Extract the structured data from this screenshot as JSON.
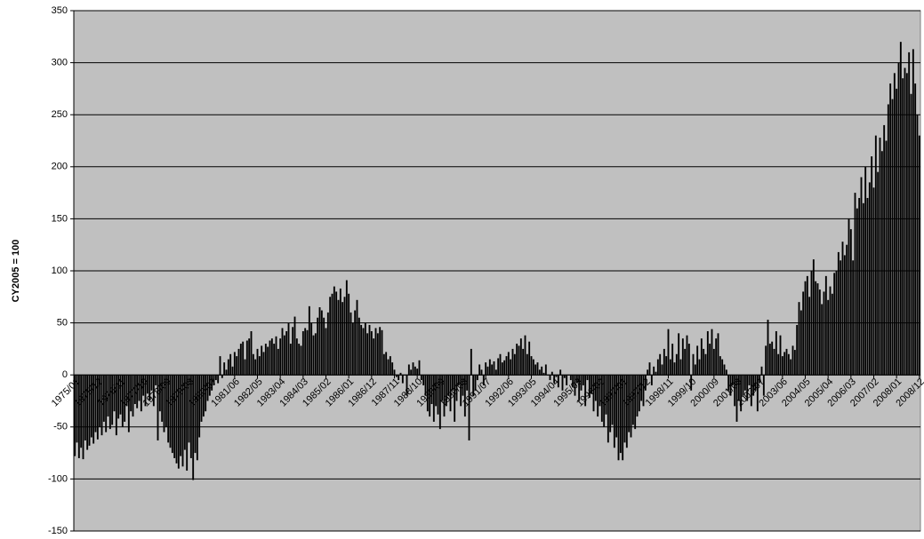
{
  "chart_data": {
    "type": "bar",
    "y_label": "CY2005 = 100",
    "color": "#000000",
    "plot_background": "#c0c0c0",
    "grid": true,
    "ylim": [
      -150,
      350
    ],
    "yticks": [
      -150,
      -100,
      -50,
      0,
      50,
      100,
      150,
      200,
      250,
      300,
      350
    ],
    "categories": [
      "1975/01",
      null,
      null,
      null,
      null,
      null,
      null,
      null,
      null,
      null,
      null,
      "1975/12",
      null,
      null,
      null,
      null,
      null,
      null,
      null,
      null,
      null,
      null,
      "1976/11",
      null,
      null,
      null,
      null,
      null,
      null,
      null,
      null,
      null,
      null,
      "1977/10",
      null,
      null,
      null,
      null,
      null,
      null,
      null,
      null,
      null,
      null,
      "1978/09",
      null,
      null,
      null,
      null,
      null,
      null,
      null,
      null,
      null,
      null,
      "1979/08",
      null,
      null,
      null,
      null,
      null,
      null,
      null,
      null,
      null,
      null,
      "1980/07",
      null,
      null,
      null,
      null,
      null,
      null,
      null,
      null,
      null,
      null,
      "1981/06",
      null,
      null,
      null,
      null,
      null,
      null,
      null,
      null,
      null,
      null,
      "1982/05",
      null,
      null,
      null,
      null,
      null,
      null,
      null,
      null,
      null,
      null,
      "1983/04",
      null,
      null,
      null,
      null,
      null,
      null,
      null,
      null,
      null,
      null,
      "1984/03",
      null,
      null,
      null,
      null,
      null,
      null,
      null,
      null,
      null,
      null,
      "1985/02",
      null,
      null,
      null,
      null,
      null,
      null,
      null,
      null,
      null,
      null,
      "1986/01",
      null,
      null,
      null,
      null,
      null,
      null,
      null,
      null,
      null,
      null,
      "1986/12",
      null,
      null,
      null,
      null,
      null,
      null,
      null,
      null,
      null,
      null,
      "1987/11",
      null,
      null,
      null,
      null,
      null,
      null,
      null,
      null,
      null,
      null,
      "1988/10",
      null,
      null,
      null,
      null,
      null,
      null,
      null,
      null,
      null,
      null,
      "1989/09",
      null,
      null,
      null,
      null,
      null,
      null,
      null,
      null,
      null,
      null,
      "1990/08",
      null,
      null,
      null,
      null,
      null,
      null,
      null,
      null,
      null,
      null,
      "1991/07",
      null,
      null,
      null,
      null,
      null,
      null,
      null,
      null,
      null,
      null,
      "1992/06",
      null,
      null,
      null,
      null,
      null,
      null,
      null,
      null,
      null,
      null,
      "1993/05",
      null,
      null,
      null,
      null,
      null,
      null,
      null,
      null,
      null,
      null,
      "1994/04",
      null,
      null,
      null,
      null,
      null,
      null,
      null,
      null,
      null,
      null,
      "1995/03",
      null,
      null,
      null,
      null,
      null,
      null,
      null,
      null,
      null,
      null,
      "1996/02",
      null,
      null,
      null,
      null,
      null,
      null,
      null,
      null,
      null,
      null,
      "1997/01",
      null,
      null,
      null,
      null,
      null,
      null,
      null,
      null,
      null,
      null,
      "1997/12",
      null,
      null,
      null,
      null,
      null,
      null,
      null,
      null,
      null,
      null,
      "1998/11",
      null,
      null,
      null,
      null,
      null,
      null,
      null,
      null,
      null,
      null,
      "1999/10",
      null,
      null,
      null,
      null,
      null,
      null,
      null,
      null,
      null,
      null,
      "2000/09",
      null,
      null,
      null,
      null,
      null,
      null,
      null,
      null,
      null,
      null,
      "2001/08",
      null,
      null,
      null,
      null,
      null,
      null,
      null,
      null,
      null,
      null,
      "2002/07",
      null,
      null,
      null,
      null,
      null,
      null,
      null,
      null,
      null,
      null,
      "2003/06",
      null,
      null,
      null,
      null,
      null,
      null,
      null,
      null,
      null,
      null,
      "2004/05",
      null,
      null,
      null,
      null,
      null,
      null,
      null,
      null,
      null,
      null,
      "2005/04",
      null,
      null,
      null,
      null,
      null,
      null,
      null,
      null,
      null,
      null,
      "2006/03",
      null,
      null,
      null,
      null,
      null,
      null,
      null,
      null,
      null,
      null,
      "2007/02",
      null,
      null,
      null,
      null,
      null,
      null,
      null,
      null,
      null,
      null,
      "2008/01",
      null,
      null,
      null,
      null,
      null,
      null,
      null,
      null,
      null,
      null,
      "2008/12"
    ],
    "values": [
      -78,
      -65,
      -80,
      -70,
      -81,
      -63,
      -72,
      -68,
      -60,
      -66,
      -55,
      -62,
      -50,
      -58,
      -45,
      -55,
      -40,
      -52,
      -48,
      -35,
      -58,
      -42,
      -38,
      -50,
      -45,
      -30,
      -55,
      -35,
      -40,
      -28,
      -32,
      -25,
      -35,
      -20,
      -30,
      -18,
      -25,
      -15,
      -30,
      -10,
      -63,
      -35,
      -45,
      -55,
      -50,
      -65,
      -70,
      -75,
      -80,
      -85,
      -90,
      -78,
      -88,
      -72,
      -92,
      -65,
      -80,
      -101,
      -75,
      -82,
      -60,
      -45,
      -40,
      -35,
      -25,
      -20,
      -15,
      -10,
      -5,
      -8,
      18,
      -3,
      12,
      5,
      15,
      20,
      8,
      22,
      18,
      25,
      30,
      32,
      15,
      33,
      35,
      42,
      20,
      15,
      25,
      18,
      28,
      22,
      30,
      27,
      33,
      35,
      30,
      37,
      25,
      35,
      45,
      38,
      42,
      50,
      30,
      46,
      56,
      35,
      30,
      28,
      42,
      45,
      43,
      66,
      50,
      38,
      40,
      55,
      65,
      62,
      55,
      45,
      60,
      75,
      78,
      85,
      80,
      72,
      83,
      70,
      75,
      91,
      78,
      60,
      50,
      62,
      72,
      55,
      48,
      45,
      50,
      40,
      48,
      42,
      35,
      45,
      40,
      46,
      43,
      20,
      22,
      15,
      18,
      12,
      5,
      -2,
      -5,
      2,
      -8,
      0,
      -20,
      10,
      5,
      12,
      8,
      6,
      14,
      -5,
      -10,
      -20,
      -35,
      -40,
      -28,
      -45,
      -30,
      -38,
      -52,
      -25,
      -40,
      -30,
      -20,
      -35,
      -15,
      -45,
      -25,
      -10,
      -30,
      -20,
      -40,
      -15,
      -63,
      25,
      -20,
      -15,
      -5,
      10,
      5,
      -10,
      12,
      8,
      15,
      10,
      13,
      5,
      16,
      20,
      12,
      14,
      18,
      22,
      15,
      25,
      20,
      30,
      28,
      35,
      25,
      38,
      20,
      32,
      18,
      15,
      10,
      12,
      5,
      8,
      2,
      10,
      0,
      -5,
      3,
      -8,
      -2,
      -12,
      5,
      -15,
      -3,
      -10,
      0,
      -5,
      -12,
      -20,
      -8,
      -25,
      -15,
      -10,
      -30,
      -5,
      -22,
      -18,
      -35,
      -25,
      -40,
      -30,
      -45,
      -50,
      -38,
      -65,
      -55,
      -48,
      -70,
      -60,
      -82,
      -75,
      -82,
      -65,
      -70,
      -55,
      -60,
      -48,
      -52,
      -40,
      -35,
      -25,
      -30,
      -15,
      5,
      12,
      -10,
      8,
      3,
      15,
      20,
      10,
      25,
      18,
      44,
      15,
      30,
      12,
      20,
      40,
      15,
      35,
      25,
      38,
      30,
      -15,
      20,
      10,
      28,
      15,
      35,
      25,
      20,
      42,
      30,
      44,
      25,
      35,
      40,
      18,
      15,
      10,
      5,
      -15,
      -20,
      -10,
      -30,
      -45,
      -25,
      -35,
      -20,
      -15,
      -25,
      -10,
      -30,
      -20,
      -15,
      -35,
      -8,
      8,
      -20,
      28,
      53,
      30,
      32,
      25,
      42,
      20,
      38,
      18,
      22,
      25,
      20,
      15,
      28,
      24,
      48,
      70,
      62,
      80,
      90,
      95,
      75,
      100,
      111,
      90,
      88,
      82,
      68,
      80,
      95,
      72,
      85,
      78,
      98,
      100,
      118,
      110,
      128,
      115,
      125,
      150,
      140,
      110,
      175,
      160,
      170,
      190,
      165,
      200,
      170,
      185,
      210,
      180,
      230,
      195,
      228,
      215,
      240,
      225,
      260,
      280,
      265,
      290,
      275,
      300,
      320,
      285,
      295,
      290,
      310,
      270,
      313,
      280,
      250,
      230
    ]
  }
}
